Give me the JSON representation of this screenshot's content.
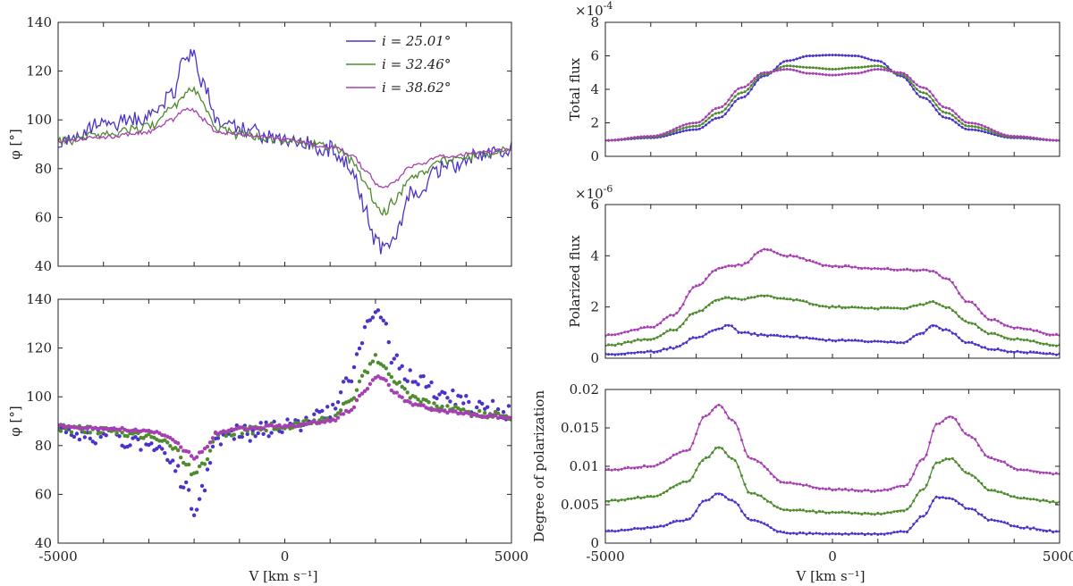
{
  "figure": {
    "colors": {
      "i25": "#4b32c8",
      "i32": "#4e8a2e",
      "i38": "#a640b2"
    },
    "legend": {
      "i25": "i = 25.01°",
      "i32": "i = 32.46°",
      "i38": "i = 38.62°"
    },
    "xlabel": "V [km s⁻¹]"
  },
  "chart_data": [
    {
      "id": "phi_lines",
      "type": "line",
      "ylabel": "φ [°]",
      "xlim": [
        -5000,
        5000
      ],
      "ylim": [
        40,
        140
      ],
      "xticks": [
        -5000,
        0,
        5000
      ],
      "yticks": [
        40,
        60,
        80,
        100,
        120,
        140
      ],
      "x": [
        -5000,
        -4000,
        -3000,
        -2500,
        -2200,
        -2000,
        -1800,
        -1500,
        -1000,
        0,
        1000,
        1200,
        1500,
        1800,
        2000,
        2200,
        2400,
        2800,
        3500,
        4500,
        5000
      ],
      "series": [
        {
          "name": "i25",
          "values": [
            91,
            98,
            101,
            110,
            125,
            127,
            115,
            100,
            96,
            92,
            88,
            86,
            78,
            62,
            50,
            47,
            53,
            70,
            80,
            87,
            88
          ]
        },
        {
          "name": "i32",
          "values": [
            91,
            94,
            97,
            104,
            111,
            112,
            106,
            96,
            94,
            92,
            89,
            88,
            83,
            73,
            66,
            62,
            67,
            76,
            83,
            86,
            88
          ]
        },
        {
          "name": "i38",
          "values": [
            91,
            93,
            95,
            100,
            104,
            104,
            100,
            95,
            94,
            92,
            89,
            88,
            85,
            79,
            74,
            72,
            75,
            81,
            85,
            87,
            88
          ]
        }
      ]
    },
    {
      "id": "phi_points",
      "type": "scatter",
      "ylabel": "φ [°]",
      "xlim": [
        -5000,
        5000
      ],
      "ylim": [
        40,
        140
      ],
      "xticks": [
        -5000,
        0,
        5000
      ],
      "yticks": [
        40,
        60,
        80,
        100,
        120,
        140
      ],
      "x": [
        -5000,
        -4000,
        -3000,
        -2500,
        -2200,
        -2000,
        -1800,
        -1500,
        -1000,
        0,
        1000,
        1400,
        1800,
        2000,
        2200,
        2400,
        2800,
        3500,
        4500,
        5000
      ],
      "series": [
        {
          "name": "i25",
          "values": [
            85,
            84,
            81,
            75,
            64,
            53,
            64,
            83,
            85,
            88,
            94,
            106,
            128,
            134,
            128,
            115,
            108,
            100,
            95,
            94
          ]
        },
        {
          "name": "i32",
          "values": [
            87,
            86,
            84,
            80,
            73,
            68,
            73,
            84,
            86,
            88,
            91,
            97,
            110,
            116,
            113,
            107,
            100,
            95,
            93,
            92
          ]
        },
        {
          "name": "i38",
          "values": [
            88,
            87,
            86,
            83,
            78,
            75,
            78,
            85,
            87,
            88,
            90,
            94,
            103,
            108,
            107,
            102,
            97,
            94,
            92,
            91
          ]
        }
      ]
    },
    {
      "id": "total_flux",
      "type": "line",
      "ylabel": "Total flux",
      "exponent": "×10",
      "exponent_power": "-4",
      "xlim": [
        -5000,
        5000
      ],
      "ylim": [
        0,
        8
      ],
      "xticks": [
        -5000,
        0,
        5000
      ],
      "yticks": [
        0,
        2,
        4,
        6,
        8
      ],
      "x": [
        -5000,
        -4000,
        -3000,
        -2500,
        -2000,
        -1500,
        -1000,
        -500,
        0,
        500,
        1000,
        1500,
        2000,
        2500,
        3000,
        4000,
        5000
      ],
      "series": [
        {
          "name": "i25",
          "values": [
            0.95,
            1.1,
            1.6,
            2.3,
            3.5,
            4.8,
            5.7,
            6.0,
            6.05,
            6.0,
            5.7,
            4.8,
            3.5,
            2.3,
            1.6,
            1.1,
            0.95
          ]
        },
        {
          "name": "i32",
          "values": [
            0.95,
            1.15,
            1.8,
            2.6,
            3.8,
            4.9,
            5.4,
            5.3,
            5.2,
            5.3,
            5.4,
            4.9,
            3.8,
            2.6,
            1.8,
            1.15,
            0.95
          ]
        },
        {
          "name": "i38",
          "values": [
            0.95,
            1.2,
            2.0,
            2.9,
            4.1,
            5.0,
            5.2,
            4.95,
            4.85,
            4.95,
            5.2,
            5.0,
            4.1,
            2.9,
            2.0,
            1.2,
            0.95
          ]
        }
      ]
    },
    {
      "id": "polarized_flux",
      "type": "line",
      "ylabel": "Polarized flux",
      "exponent": "×10",
      "exponent_power": "-6",
      "xlim": [
        -5000,
        5000
      ],
      "ylim": [
        0,
        6
      ],
      "xticks": [
        -5000,
        0,
        5000
      ],
      "yticks": [
        0,
        2,
        4,
        6
      ],
      "x": [
        -5000,
        -4000,
        -3500,
        -3000,
        -2500,
        -2300,
        -2000,
        -1500,
        -1000,
        0,
        1000,
        1500,
        2000,
        2200,
        2500,
        3000,
        3500,
        4000,
        5000
      ],
      "series": [
        {
          "name": "i25",
          "values": [
            0.15,
            0.25,
            0.4,
            0.8,
            1.15,
            1.3,
            1.0,
            0.9,
            0.85,
            0.7,
            0.65,
            0.6,
            1.0,
            1.3,
            1.1,
            0.6,
            0.35,
            0.25,
            0.15
          ]
        },
        {
          "name": "i32",
          "values": [
            0.5,
            0.75,
            1.1,
            1.8,
            2.3,
            2.35,
            2.3,
            2.45,
            2.3,
            2.0,
            1.95,
            1.95,
            2.1,
            2.2,
            2.0,
            1.4,
            0.95,
            0.75,
            0.5
          ]
        },
        {
          "name": "i38",
          "values": [
            0.9,
            1.2,
            1.7,
            2.8,
            3.5,
            3.6,
            3.65,
            4.25,
            4.0,
            3.6,
            3.5,
            3.45,
            3.45,
            3.4,
            3.1,
            2.2,
            1.5,
            1.2,
            0.9
          ]
        }
      ]
    },
    {
      "id": "degree_pol",
      "type": "line",
      "ylabel": "Degree of polarization",
      "xlim": [
        -5000,
        5000
      ],
      "ylim": [
        0,
        0.02
      ],
      "xticks": [
        -5000,
        0,
        5000
      ],
      "yticks": [
        0,
        0.005,
        0.01,
        0.015,
        0.02
      ],
      "ytick_labels": [
        "0",
        "0.005",
        "0.01",
        "0.015",
        "0.02"
      ],
      "xtick_labels": [
        "-5000",
        "0",
        "5000"
      ],
      "x": [
        -5000,
        -4000,
        -3200,
        -2800,
        -2500,
        -2200,
        -1800,
        -1000,
        0,
        1000,
        1600,
        2000,
        2300,
        2600,
        3000,
        3500,
        4200,
        5000
      ],
      "series": [
        {
          "name": "i25",
          "values": [
            0.0015,
            0.002,
            0.003,
            0.0055,
            0.0065,
            0.0055,
            0.003,
            0.0013,
            0.0012,
            0.0012,
            0.0015,
            0.0035,
            0.006,
            0.0058,
            0.0045,
            0.003,
            0.002,
            0.0015
          ]
        },
        {
          "name": "i32",
          "values": [
            0.0055,
            0.006,
            0.008,
            0.011,
            0.0125,
            0.011,
            0.0065,
            0.0043,
            0.004,
            0.0038,
            0.0043,
            0.007,
            0.0105,
            0.011,
            0.009,
            0.0068,
            0.0058,
            0.0053
          ]
        },
        {
          "name": "i38",
          "values": [
            0.0095,
            0.01,
            0.012,
            0.0165,
            0.018,
            0.016,
            0.011,
            0.0078,
            0.007,
            0.0068,
            0.0075,
            0.011,
            0.0155,
            0.0165,
            0.014,
            0.011,
            0.0095,
            0.009
          ]
        }
      ]
    }
  ]
}
